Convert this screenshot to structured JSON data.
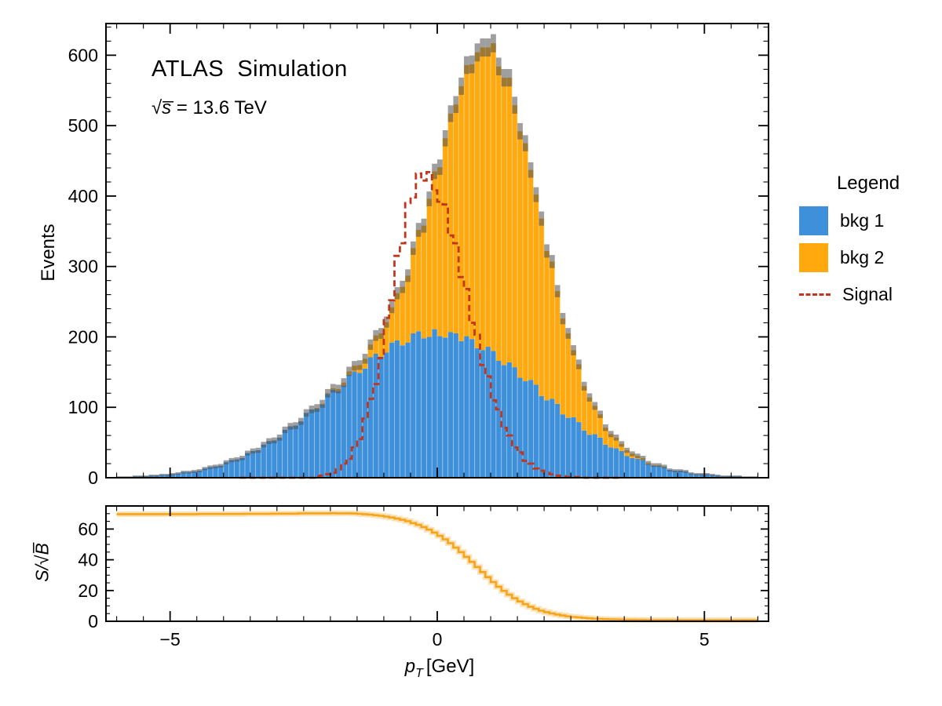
{
  "header": {
    "experiment_label": "ATLAS  Simulation",
    "energy_prefix": "√s̅",
    "energy_value": " = 13.6 TeV"
  },
  "legend": {
    "title": "Legend",
    "entries": [
      {
        "label": "bkg 1",
        "type": "fill",
        "color": "#3f90da"
      },
      {
        "label": "bkg 2",
        "type": "fill",
        "color": "#ffa90e"
      },
      {
        "label": "Signal",
        "type": "dashed-line",
        "color": "#c0371d"
      }
    ]
  },
  "axes": {
    "main": {
      "ylabel": "Events",
      "ytick_values": [
        0,
        100,
        200,
        300,
        400,
        500,
        600
      ],
      "ytick_labels": [
        "0",
        "100",
        "200",
        "300",
        "400",
        "500",
        "600"
      ],
      "y_minor_step": 20,
      "ylim": [
        0,
        645
      ]
    },
    "x": {
      "label_base": "p",
      "label_sub": "T",
      "label_unit": "[GeV]",
      "tick_values": [
        -5,
        0,
        5
      ],
      "tick_labels": [
        "−5",
        "0",
        "5"
      ],
      "x_minor_step": 0.5,
      "xlim": [
        -6.2,
        6.2
      ]
    },
    "ratio": {
      "ylabel": "S/√B̅",
      "ytick_values": [
        0,
        20,
        40,
        60
      ],
      "ytick_labels": [
        "0",
        "20",
        "40",
        "60"
      ],
      "y_minor_step": 5,
      "ylim": [
        0,
        75
      ]
    }
  },
  "chart_data": {
    "type": "histogram-stacked-bar+dashed-step-line+ratio-step-line",
    "title": "ATLAS Simulation, √s = 13.6 TeV",
    "grid": false,
    "legend_position": "right-outside",
    "bins": {
      "start": -6.0,
      "width": 0.1,
      "count": 120
    },
    "series": [
      {
        "name": "bkg 1",
        "role": "stacked-fill",
        "color": "#3f90da",
        "values": [
          1,
          1,
          1,
          2,
          2,
          2,
          3,
          3,
          4,
          4,
          5,
          6,
          8,
          8,
          9,
          10,
          13,
          15,
          16,
          17,
          22,
          25,
          26,
          28,
          35,
          38,
          39,
          47,
          52,
          53,
          57,
          68,
          73,
          74,
          80,
          92,
          97,
          98,
          104,
          119,
          125,
          123,
          131,
          146,
          151,
          149,
          155,
          171,
          176,
          172,
          178,
          192,
          195,
          188,
          192,
          205,
          208,
          198,
          200,
          211,
          201,
          199,
          207,
          205,
          194,
          201,
          197,
          184,
          181,
          186,
          180,
          166,
          160,
          164,
          157,
          142,
          137,
          139,
          132,
          116,
          110,
          112,
          105,
          90,
          85,
          86,
          79,
          67,
          61,
          62,
          57,
          47,
          43,
          42,
          38,
          31,
          28,
          27,
          25,
          19,
          17,
          17,
          15,
          11,
          10,
          10,
          9,
          6,
          5,
          5,
          5,
          4,
          3,
          2,
          2,
          2,
          2,
          1,
          1,
          1
        ]
      },
      {
        "name": "bkg 2",
        "role": "stacked-fill",
        "color": "#ffa90e",
        "values": [
          0,
          0,
          0,
          0,
          0,
          0,
          0,
          0,
          0,
          0,
          0,
          0,
          0,
          0,
          0,
          0,
          0,
          0,
          0,
          0,
          0,
          0,
          0,
          0,
          0,
          0,
          0,
          0,
          0,
          0,
          0,
          0,
          0,
          0,
          0,
          0,
          0,
          1,
          1,
          1,
          2,
          3,
          4,
          5,
          8,
          11,
          14,
          18,
          26,
          33,
          43,
          50,
          67,
          83,
          95,
          121,
          144,
          160,
          196,
          224,
          240,
          283,
          310,
          325,
          362,
          385,
          390,
          420,
          430,
          425,
          437,
          418,
          408,
          404,
          372,
          350,
          338,
          298,
          270,
          252,
          212,
          195,
          160,
          136,
          120,
          95,
          82,
          63,
          53,
          40,
          33,
          24,
          19,
          15,
          10,
          8,
          6,
          4,
          3,
          2,
          1,
          1,
          1,
          0,
          0,
          0,
          0,
          0,
          0,
          0,
          0,
          0,
          0,
          0,
          0,
          0,
          0,
          0,
          0,
          0
        ]
      },
      {
        "name": "Signal",
        "role": "dashed-step-line",
        "color": "#c0371d",
        "values": [
          0,
          0,
          0,
          0,
          0,
          0,
          0,
          0,
          0,
          0,
          0,
          0,
          0,
          0,
          0,
          0,
          0,
          0,
          0,
          0,
          0,
          0,
          0,
          0,
          0,
          0,
          0,
          0,
          0,
          0,
          0,
          0,
          0,
          0,
          0,
          0,
          0,
          2,
          3,
          5,
          7,
          12,
          20,
          27,
          43,
          55,
          84,
          112,
          133,
          170,
          227,
          252,
          315,
          333,
          390,
          398,
          432,
          422,
          434,
          408,
          392,
          388,
          344,
          333,
          285,
          268,
          220,
          203,
          160,
          144,
          110,
          97,
          71,
          60,
          43,
          36,
          24,
          20,
          13,
          10,
          7,
          5,
          3,
          2,
          1,
          1,
          1,
          0,
          0,
          0,
          0,
          0,
          0,
          0,
          0,
          0,
          0,
          0,
          0,
          0,
          0,
          0,
          0,
          0,
          0,
          0,
          0,
          0,
          0,
          0,
          0,
          0,
          0,
          0,
          0,
          0,
          0,
          0,
          0,
          0
        ]
      }
    ],
    "uncertainty_band": {
      "color": "rgba(80,80,80,0.55)",
      "half_width_model": "0.5*sqrt(bkg1+bkg2)+0.5"
    },
    "ratio_panel": {
      "name": "S/√B",
      "color": "#f7a41d",
      "band_color": "rgba(247,164,29,0.32)",
      "values": [
        69.7,
        69.7,
        69.7,
        69.7,
        69.7,
        69.7,
        69.7,
        69.7,
        69.7,
        69.7,
        69.7,
        69.7,
        69.7,
        69.7,
        69.7,
        69.8,
        69.8,
        69.8,
        69.8,
        69.8,
        69.8,
        69.8,
        69.8,
        69.8,
        69.9,
        69.9,
        69.9,
        69.9,
        69.9,
        70.0,
        70.0,
        70.0,
        70.0,
        70.0,
        70.2,
        70.2,
        70.2,
        70.2,
        70.2,
        70.2,
        70.3,
        70.2,
        70.2,
        70.2,
        70.1,
        69.9,
        69.6,
        69.4,
        69.0,
        68.6,
        68.1,
        67.5,
        66.8,
        66.0,
        65.1,
        63.9,
        62.7,
        61.3,
        59.6,
        57.7,
        55.6,
        53.3,
        50.8,
        47.9,
        45.0,
        41.9,
        38.6,
        35.3,
        32.0,
        28.7,
        25.5,
        22.5,
        19.8,
        17.3,
        15.0,
        12.9,
        11.1,
        9.5,
        8.1,
        6.9,
        5.9,
        5.1,
        4.4,
        3.8,
        3.2,
        2.8,
        2.5,
        2.2,
        1.9,
        1.7,
        1.5,
        1.4,
        1.3,
        1.2,
        1.1,
        1.0,
        1.0,
        0.9,
        0.9,
        0.8,
        0.8,
        0.8,
        0.8,
        0.8,
        0.8,
        0.7,
        0.7,
        0.7,
        0.7,
        0.7,
        0.7,
        0.7,
        0.7,
        0.7,
        0.7,
        0.7,
        0.7,
        0.7,
        0.7,
        0.7
      ]
    },
    "xlabel": "p_T [GeV]",
    "ylabel_main": "Events",
    "ylabel_ratio": "S/√B",
    "xlim": [
      -6.2,
      6.2
    ],
    "ylim_main": [
      0,
      645
    ],
    "ylim_ratio": [
      0,
      75
    ]
  }
}
